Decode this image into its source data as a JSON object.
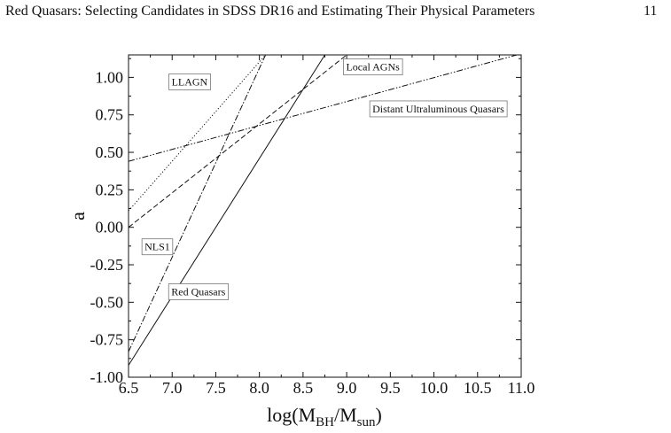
{
  "header": {
    "title": "Red Quasars: Selecting Candidates in SDSS DR16 and Estimating Their Physical Parameters",
    "page_number": "11"
  },
  "chart_data": {
    "type": "line",
    "xlabel": {
      "main": "log(M",
      "sub1": "BH",
      "mid": "/M",
      "sub2": "sun",
      "end": ")"
    },
    "ylabel": "a",
    "xlim": [
      6.5,
      11.0
    ],
    "ylim": [
      -1.0,
      1.15
    ],
    "xticks": [
      "6.5",
      "7.0",
      "7.5",
      "8.0",
      "8.5",
      "9.0",
      "9.5",
      "10.0",
      "10.5",
      "11.0"
    ],
    "yticks": [
      "1.00",
      "0.75",
      "0.50",
      "0.25",
      "0.00",
      "-0.25",
      "-0.50",
      "-0.75",
      "-1.00"
    ],
    "xtick_values": [
      6.5,
      7.0,
      7.5,
      8.0,
      8.5,
      9.0,
      9.5,
      10.0,
      10.5,
      11.0
    ],
    "ytick_values": [
      1.0,
      0.75,
      0.5,
      0.25,
      0.0,
      -0.25,
      -0.5,
      -0.75,
      -1.0
    ],
    "grid": false,
    "series": [
      {
        "name": "Red Quasars",
        "style": "solid",
        "x": [
          6.5,
          8.75
        ],
        "y": [
          -0.92,
          1.15
        ],
        "label_at": [
          7.3,
          -0.43
        ]
      },
      {
        "name": "NLS1",
        "style": "dashdot",
        "x": [
          6.5,
          8.07
        ],
        "y": [
          -0.83,
          1.15
        ],
        "label_at": [
          6.83,
          -0.13
        ]
      },
      {
        "name": "LLAGN",
        "style": "dotted",
        "x": [
          6.5,
          8.07
        ],
        "y": [
          0.11,
          1.15
        ],
        "label_at": [
          7.2,
          0.97
        ]
      },
      {
        "name": "Local AGNs",
        "style": "dashed",
        "x": [
          6.5,
          9.0
        ],
        "y": [
          0.0,
          1.15
        ],
        "label_at": [
          9.3,
          1.07
        ]
      },
      {
        "name": "Distant Ultraluminous Quasars",
        "style": "dashdotdot",
        "x": [
          6.5,
          10.95
        ],
        "y": [
          0.44,
          1.15
        ],
        "label_at": [
          10.05,
          0.79
        ]
      }
    ]
  }
}
